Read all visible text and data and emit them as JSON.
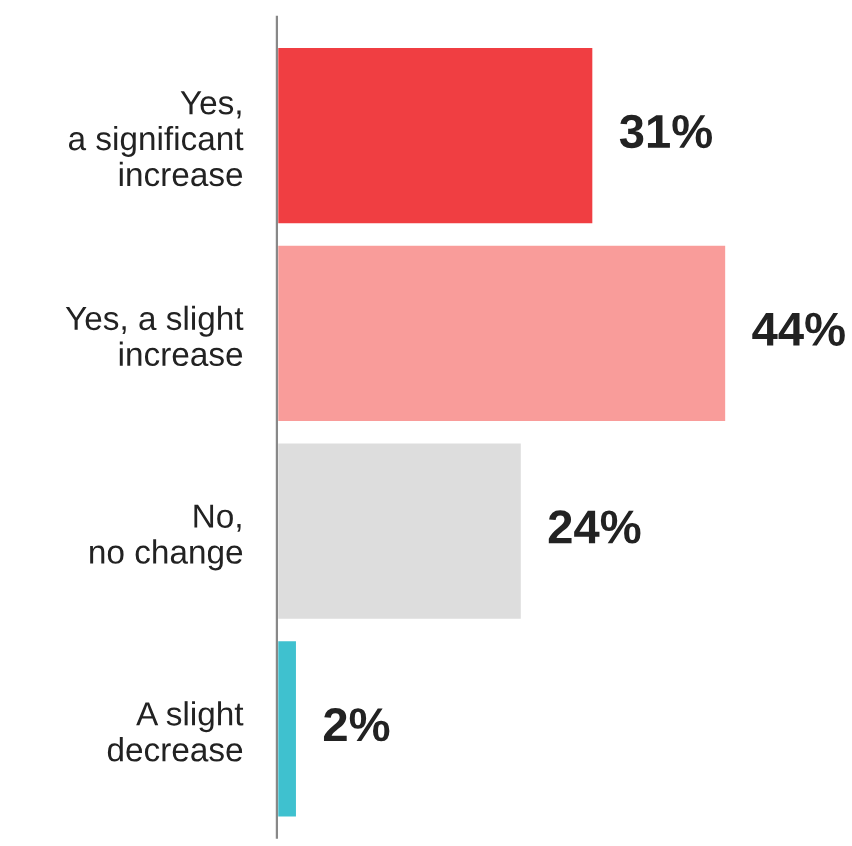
{
  "chart_data": {
    "type": "bar",
    "orientation": "horizontal",
    "categories": [
      "Yes,\na significant\nincrease",
      "Yes, a slight\nincrease",
      "No,\nno change",
      "A slight\ndecrease"
    ],
    "values": [
      31,
      44,
      24,
      2
    ],
    "colors": [
      "#f03e42",
      "#f99c9a",
      "#dddddd",
      "#3fc1cf"
    ],
    "value_labels": [
      "31%",
      "44%",
      "24%",
      "2%"
    ],
    "grid": false,
    "legend": false
  }
}
